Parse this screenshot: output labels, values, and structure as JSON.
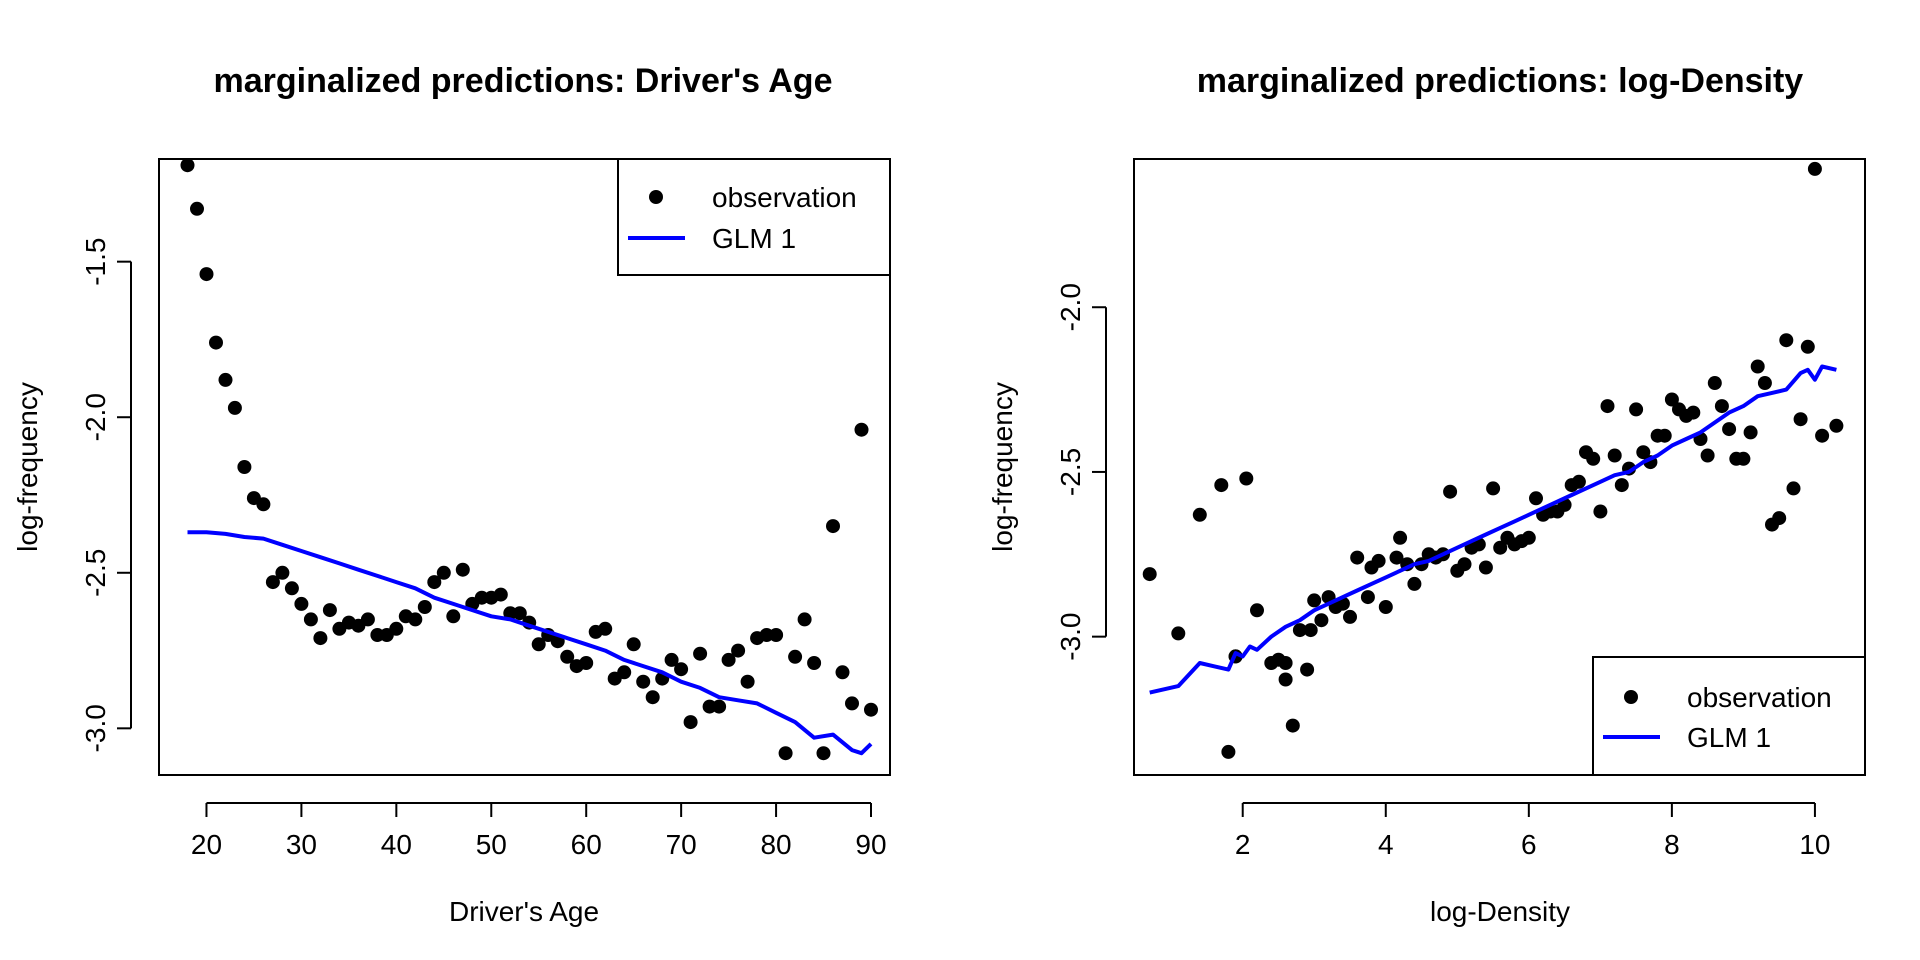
{
  "chart_data": [
    {
      "type": "scatter",
      "title": "marginalized predictions: Driver's Age",
      "xlabel": "Driver's Age",
      "ylabel": "log-frequency",
      "xlim": [
        15,
        92
      ],
      "ylim": [
        -3.15,
        -1.17
      ],
      "x_ticks": [
        20,
        30,
        40,
        50,
        60,
        70,
        80,
        90
      ],
      "x_tick_labels": [
        "20",
        "30",
        "40",
        "50",
        "60",
        "70",
        "80",
        "90"
      ],
      "y_ticks": [
        -1.5,
        -2.0,
        -2.5,
        -3.0
      ],
      "y_tick_labels": [
        "-1.5",
        "-2.0",
        "-2.5",
        "-3.0"
      ],
      "legend": {
        "placement": "top-right",
        "entries": [
          "observation",
          "GLM 1"
        ]
      },
      "series": [
        {
          "name": "observation",
          "kind": "points",
          "color": "#000000",
          "x": [
            18,
            19,
            20,
            21,
            22,
            23,
            24,
            25,
            26,
            27,
            28,
            29,
            30,
            31,
            32,
            33,
            34,
            35,
            36,
            37,
            38,
            39,
            40,
            41,
            42,
            43,
            44,
            45,
            46,
            47,
            48,
            49,
            50,
            51,
            52,
            53,
            54,
            55,
            56,
            57,
            58,
            59,
            60,
            61,
            62,
            63,
            64,
            65,
            66,
            67,
            68,
            69,
            70,
            71,
            72,
            73,
            74,
            75,
            76,
            77,
            78,
            79,
            80,
            81,
            82,
            83,
            84,
            85,
            86,
            87,
            88,
            89,
            90
          ],
          "y": [
            -1.19,
            -1.33,
            -1.54,
            -1.76,
            -1.88,
            -1.97,
            -2.16,
            -2.26,
            -2.28,
            -2.53,
            -2.5,
            -2.55,
            -2.6,
            -2.65,
            -2.71,
            -2.62,
            -2.68,
            -2.66,
            -2.67,
            -2.65,
            -2.7,
            -2.7,
            -2.68,
            -2.64,
            -2.65,
            -2.61,
            -2.53,
            -2.5,
            -2.64,
            -2.49,
            -2.6,
            -2.58,
            -2.58,
            -2.57,
            -2.63,
            -2.63,
            -2.66,
            -2.73,
            -2.7,
            -2.72,
            -2.77,
            -2.8,
            -2.79,
            -2.69,
            -2.68,
            -2.84,
            -2.82,
            -2.73,
            -2.85,
            -2.9,
            -2.84,
            -2.78,
            -2.81,
            -2.98,
            -2.76,
            -2.93,
            -2.93,
            -2.78,
            -2.75,
            -2.85,
            -2.71,
            -2.7,
            -2.7,
            -3.08,
            -2.77,
            -2.65,
            -2.79,
            -3.08,
            -2.35,
            -2.82,
            -2.92,
            -2.04,
            -2.94
          ]
        },
        {
          "name": "GLM 1",
          "kind": "line",
          "color": "#0000ff",
          "x": [
            18,
            20,
            22,
            24,
            26,
            28,
            30,
            32,
            34,
            36,
            38,
            40,
            42,
            44,
            46,
            48,
            50,
            52,
            54,
            56,
            58,
            60,
            62,
            64,
            66,
            68,
            70,
            72,
            74,
            76,
            78,
            80,
            82,
            84,
            86,
            88,
            89,
            90
          ],
          "y": [
            -2.37,
            -2.37,
            -2.375,
            -2.385,
            -2.39,
            -2.41,
            -2.43,
            -2.45,
            -2.47,
            -2.49,
            -2.51,
            -2.53,
            -2.55,
            -2.58,
            -2.6,
            -2.62,
            -2.64,
            -2.65,
            -2.67,
            -2.69,
            -2.71,
            -2.73,
            -2.75,
            -2.78,
            -2.8,
            -2.82,
            -2.85,
            -2.87,
            -2.9,
            -2.91,
            -2.92,
            -2.95,
            -2.98,
            -3.03,
            -3.02,
            -3.07,
            -3.08,
            -3.05
          ]
        }
      ]
    },
    {
      "type": "scatter",
      "title": "marginalized predictions: log-Density",
      "xlabel": "log-Density",
      "ylabel": "log-frequency",
      "xlim": [
        0.48,
        10.7
      ],
      "ylim": [
        -3.42,
        -1.55
      ],
      "x_ticks": [
        2,
        4,
        6,
        8,
        10
      ],
      "x_tick_labels": [
        "2",
        "4",
        "6",
        "8",
        "10"
      ],
      "y_ticks": [
        -2.0,
        -2.5,
        -3.0
      ],
      "y_tick_labels": [
        "-2.0",
        "-2.5",
        "-3.0"
      ],
      "legend": {
        "placement": "bottom-right",
        "entries": [
          "observation",
          "GLM 1"
        ]
      },
      "series": [
        {
          "name": "observation",
          "kind": "points",
          "color": "#000000",
          "x": [
            0.7,
            1.1,
            1.4,
            1.7,
            1.8,
            1.9,
            2.05,
            2.2,
            2.4,
            2.6,
            2.7,
            2.8,
            2.9,
            3.0,
            3.2,
            3.4,
            3.6,
            3.8,
            4.0,
            4.2,
            4.4,
            4.6,
            4.8,
            5.0,
            5.2,
            5.4,
            5.6,
            5.8,
            6.0,
            6.2,
            6.4,
            6.6,
            6.8,
            7.0,
            7.2,
            7.4,
            7.6,
            7.8,
            8.0,
            8.2,
            8.4,
            8.6,
            8.8,
            9.0,
            9.2,
            9.4,
            9.6,
            9.8,
            10.0,
            10.1,
            10.3,
            1.9,
            2.5,
            2.6,
            2.95,
            3.1,
            3.3,
            3.5,
            3.75,
            3.9,
            4.15,
            4.3,
            4.5,
            4.7,
            4.9,
            5.1,
            5.3,
            5.5,
            5.7,
            5.9,
            6.1,
            6.3,
            6.5,
            6.7,
            6.9,
            7.1,
            7.3,
            7.5,
            7.7,
            7.9,
            8.1,
            8.3,
            8.5,
            8.7,
            8.9,
            9.1,
            9.3,
            9.5,
            9.7,
            9.9
          ],
          "y": [
            -2.81,
            -2.99,
            -2.63,
            -2.54,
            -3.35,
            -3.06,
            -2.52,
            -2.92,
            -3.08,
            -3.13,
            -3.27,
            -2.98,
            -3.1,
            -2.89,
            -2.88,
            -2.9,
            -2.76,
            -2.79,
            -2.91,
            -2.7,
            -2.84,
            -2.75,
            -2.75,
            -2.8,
            -2.73,
            -2.79,
            -2.73,
            -2.72,
            -2.7,
            -2.63,
            -2.62,
            -2.54,
            -2.44,
            -2.62,
            -2.45,
            -2.49,
            -2.44,
            -2.39,
            -2.28,
            -2.33,
            -2.4,
            -2.23,
            -2.37,
            -2.46,
            -2.18,
            -2.66,
            -2.1,
            -2.34,
            -1.58,
            -2.39,
            -2.36,
            -3.06,
            -3.07,
            -3.08,
            -2.98,
            -2.95,
            -2.91,
            -2.94,
            -2.88,
            -2.77,
            -2.76,
            -2.78,
            -2.78,
            -2.76,
            -2.56,
            -2.78,
            -2.72,
            -2.55,
            -2.7,
            -2.71,
            -2.58,
            -2.62,
            -2.6,
            -2.53,
            -2.46,
            -2.3,
            -2.54,
            -2.31,
            -2.47,
            -2.39,
            -2.31,
            -2.32,
            -2.45,
            -2.3,
            -2.46,
            -2.38,
            -2.23,
            -2.64,
            -2.55,
            -2.12
          ]
        },
        {
          "name": "GLM 1",
          "kind": "line",
          "color": "#0000ff",
          "x": [
            0.7,
            1.1,
            1.4,
            1.6,
            1.8,
            1.9,
            2.0,
            2.1,
            2.2,
            2.4,
            2.6,
            2.8,
            3.0,
            3.2,
            3.4,
            3.6,
            3.8,
            4.0,
            4.2,
            4.4,
            4.6,
            4.8,
            5.0,
            5.2,
            5.4,
            5.6,
            5.8,
            6.0,
            6.2,
            6.4,
            6.6,
            6.8,
            7.0,
            7.2,
            7.4,
            7.6,
            7.8,
            8.0,
            8.2,
            8.4,
            8.6,
            8.8,
            9.0,
            9.2,
            9.4,
            9.6,
            9.8,
            9.9,
            10.0,
            10.1,
            10.3
          ],
          "y": [
            -3.17,
            -3.15,
            -3.08,
            -3.09,
            -3.1,
            -3.05,
            -3.06,
            -3.03,
            -3.04,
            -3.0,
            -2.97,
            -2.95,
            -2.92,
            -2.9,
            -2.88,
            -2.86,
            -2.84,
            -2.82,
            -2.8,
            -2.78,
            -2.77,
            -2.75,
            -2.73,
            -2.71,
            -2.69,
            -2.67,
            -2.65,
            -2.63,
            -2.61,
            -2.59,
            -2.57,
            -2.55,
            -2.53,
            -2.51,
            -2.5,
            -2.47,
            -2.45,
            -2.42,
            -2.4,
            -2.38,
            -2.35,
            -2.32,
            -2.3,
            -2.27,
            -2.26,
            -2.25,
            -2.2,
            -2.19,
            -2.22,
            -2.18,
            -2.19
          ]
        }
      ]
    }
  ]
}
